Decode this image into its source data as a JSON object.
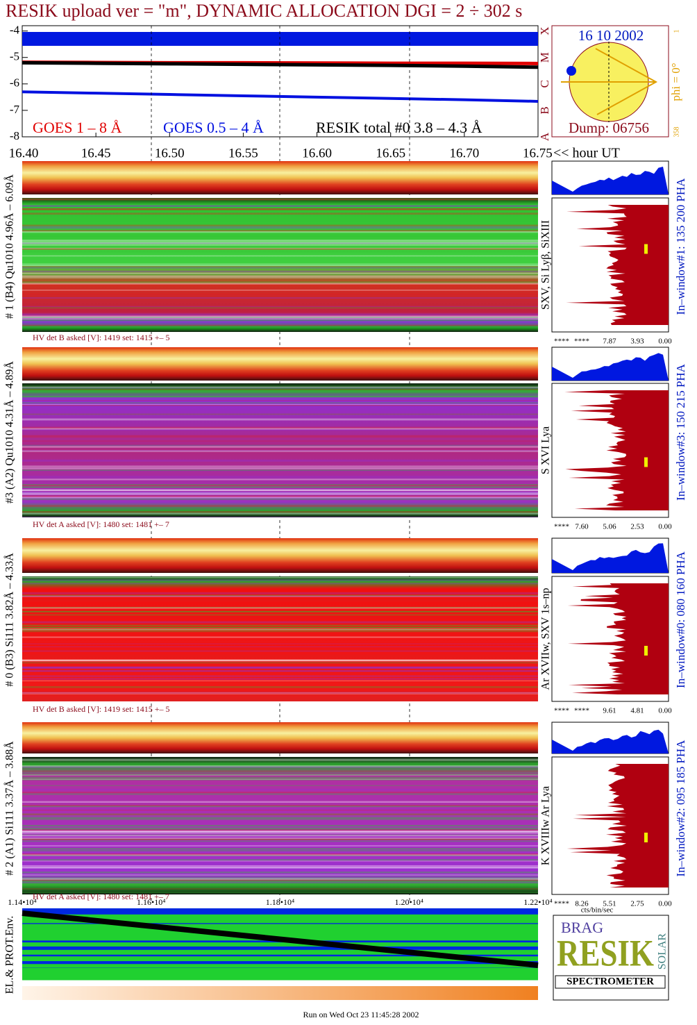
{
  "title": "RESIK upload ver = \"m\", DYNAMIC ALLOCATION  DGI =   2 ÷ 302 s",
  "chart_data": {
    "type": "line",
    "x": [
      16.4,
      16.45,
      16.5,
      16.55,
      16.6,
      16.65,
      16.7,
      16.75
    ],
    "series": [
      {
        "name": "GOES 1 – 8 Å",
        "color": "#e00000",
        "values": [
          -5.18,
          -5.19,
          -5.2,
          -5.2,
          -5.21,
          -5.22,
          -5.22,
          -5.23
        ]
      },
      {
        "name": "GOES 0.5 – 4 Å",
        "color": "#0010e0",
        "values": [
          -6.3,
          -6.35,
          -6.4,
          -6.45,
          -6.5,
          -6.55,
          -6.6,
          -6.66
        ]
      },
      {
        "name": "RESIK total #0  3.8 – 4.3 Å",
        "color": "#000000",
        "values": [
          -5.2,
          -5.22,
          -5.24,
          -5.26,
          -5.28,
          -5.3,
          -5.33,
          -5.37
        ]
      }
    ],
    "xlim": [
      16.4,
      16.75
    ],
    "xticks": [
      {
        "value": 16.4,
        "label": "16.40"
      },
      16.45,
      {
        "value": 16.5,
        "label": "16.50"
      },
      16.55,
      {
        "value": 16.6,
        "label": "16.60"
      },
      16.65,
      {
        "value": 16.7,
        "label": "16.70"
      },
      16.75
    ],
    "xlabel": "<< hour UT",
    "ylim": [
      -8,
      -3.8
    ],
    "yticks": [
      -4,
      -5,
      -6,
      -7,
      -8
    ],
    "goes_classes": [
      "X",
      "M",
      "C",
      "B",
      "A"
    ]
  },
  "sun": {
    "date": "16 10 2002",
    "dump": "Dump: 06756",
    "phi": "phi =  0°",
    "tick_top": "1",
    "tick_bottom": "358"
  },
  "panels": [
    {
      "label": "# 1 (B4) Qu1010 4.96Å – 6.09Å",
      "lines": "SXV, Si Lyβ, SiXIII",
      "window": "In–window#1:  135 200 PHA",
      "hv": "HV det B asked [V]:  1419 set:  1415 +–    5",
      "hist_ticks": [
        "****",
        "****",
        "7.87",
        "3.93",
        "0.00"
      ]
    },
    {
      "label": "#3 (A2) Qu1010  4.31Å – 4.89Å",
      "lines": "S XVI Lya",
      "window": "In–window#3:  150 215 PHA",
      "hv": "HV det A asked [V]:  1480 set:  1481 +–    7",
      "hist_ticks": [
        "****",
        "7.60",
        "5.06",
        "2.53",
        "0.00"
      ]
    },
    {
      "label": "# 0 (B3) Si111  3.82Å – 4.33Å",
      "lines": "Ar XVIIw,  SXV 1s–np",
      "window": "In–window#0:  080 160 PHA",
      "hv": "HV det B asked [V]:  1419 set:  1415 +–    5",
      "hist_ticks": [
        "****",
        "****",
        "9.61",
        "4.81",
        "0.00"
      ]
    },
    {
      "label": "# 2 (A1) Si111  3.37Å – 3.88Å",
      "lines": "K XVIIIw  Ar Lya",
      "window": "In–window#2:  095 185 PHA",
      "hv": "HV det A asked [V]:  1480 set:  1481 +–    7",
      "hist_ticks": [
        "****",
        "8.26",
        "5.51",
        "2.75",
        "0.00"
      ]
    }
  ],
  "bottom": {
    "xticks": [
      "1.14•10⁴",
      "1.16•10⁴",
      "1.18•10⁴",
      "1.20•10⁴",
      "1.22•10⁴"
    ],
    "ylabel": "EL.& PROT.Env.",
    "hist_unit": "cts/bin/sec"
  },
  "logo": {
    "brag": "BRAG",
    "resik": "RESIK",
    "solar": "SOLAR",
    "spectrometer": "SPECTROMETER"
  },
  "footer": "Run on Wed Oct 23 11:45:28 2002"
}
